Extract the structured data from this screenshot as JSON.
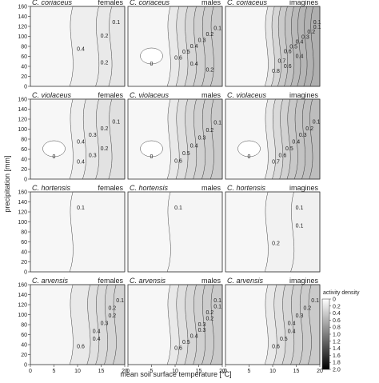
{
  "chart_data": {
    "type": "contour-grid",
    "y_label": "precipitation [mm]",
    "x_label": "mean soil surface temperature [°C]",
    "xlim": [
      0,
      20
    ],
    "ylim": [
      0,
      160
    ],
    "xticks": [
      0,
      5,
      10,
      15,
      20
    ],
    "yticks": [
      0,
      20,
      40,
      60,
      80,
      100,
      120,
      140,
      160
    ],
    "panels": [
      {
        "species": "C. coriaceus",
        "group": "females",
        "contour_labels": [
          0.1,
          0.2,
          0.4,
          0.2
        ]
      },
      {
        "species": "C. coriaceus",
        "group": "males",
        "contour_labels": [
          0,
          0.1,
          0.2,
          0.3,
          0.4,
          0.5,
          0.6,
          0.4,
          0.2
        ]
      },
      {
        "species": "C. coriaceus",
        "group": "imagines",
        "contour_labels": [
          0.1,
          0.1,
          0.2,
          0.3,
          0.4,
          0.5,
          0.6,
          0.4,
          0.7,
          0.6,
          0.8
        ]
      },
      {
        "species": "C. violaceus",
        "group": "females",
        "contour_labels": [
          0,
          0.1,
          0.2,
          0.3,
          0.4,
          0.2,
          0.3,
          0.4
        ]
      },
      {
        "species": "C. violaceus",
        "group": "males",
        "contour_labels": [
          0,
          0.1,
          0.2,
          0.3,
          0.4,
          0.5,
          0.6
        ]
      },
      {
        "species": "C. violaceus",
        "group": "imagines",
        "contour_labels": [
          0,
          0.1,
          0.2,
          0.3,
          0.4,
          0.5,
          0.6,
          0.7
        ]
      },
      {
        "species": "C. hortensis",
        "group": "females",
        "contour_labels": [
          0.1
        ]
      },
      {
        "species": "C. hortensis",
        "group": "males",
        "contour_labels": [
          0.1
        ]
      },
      {
        "species": "C. hortensis",
        "group": "imagines",
        "contour_labels": [
          0.1,
          0.1,
          0.2
        ]
      },
      {
        "species": "C. arvensis",
        "group": "females",
        "contour_labels": [
          0.1,
          0.2,
          0.2,
          0.3,
          0.4,
          0.4,
          0.6
        ]
      },
      {
        "species": "C. arvensis",
        "group": "males",
        "contour_labels": [
          0.1,
          0.1,
          0.2,
          0.2,
          0.3,
          0.3,
          0.4,
          0.5,
          0.6
        ]
      },
      {
        "species": "C. arvensis",
        "group": "imagines",
        "contour_labels": [
          0.1,
          0.2,
          0.3,
          0.4,
          0.4,
          0.5,
          0.6
        ]
      }
    ],
    "colorbar": {
      "title": "activity density",
      "ticks": [
        0,
        0.2,
        0.4,
        0.6,
        0.8,
        {
          "value": 1,
          "label": "1.0"
        },
        1.2,
        1.4,
        1.6,
        1.8,
        {
          "value": 2,
          "label": "2.0"
        }
      ]
    }
  }
}
